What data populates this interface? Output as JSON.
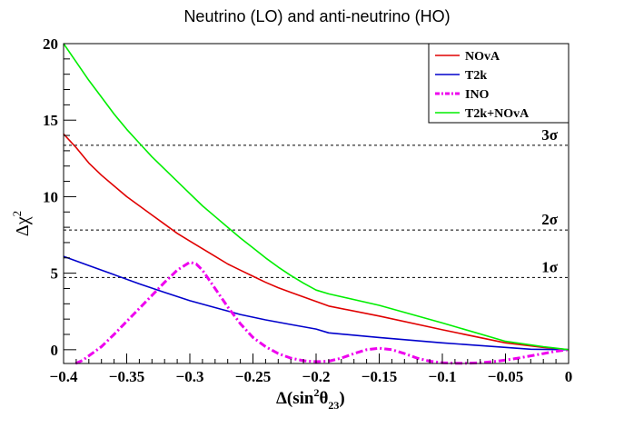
{
  "chart_data": {
    "type": "line",
    "title": "Neutrino (LO) and anti-neutrino (HO)",
    "xlabel": {
      "prefix": "Δ(sin",
      "sup": "2",
      "theta": "θ",
      "sub": "23",
      "suffix": ")"
    },
    "ylabel": {
      "base": "Δχ",
      "sup": "2"
    },
    "xlim": [
      -0.4,
      0
    ],
    "ylim": [
      -0.9,
      20
    ],
    "x_ticks": [
      -0.4,
      -0.35,
      -0.3,
      -0.25,
      -0.2,
      -0.15,
      -0.1,
      -0.05,
      0
    ],
    "x_tick_labels": [
      "−0.4",
      "−0.35",
      "−0.3",
      "−0.25",
      "−0.2",
      "−0.15",
      "−0.1",
      "−0.05",
      "0"
    ],
    "y_ticks": [
      0,
      5,
      10,
      15,
      20
    ],
    "y_tick_labels": [
      "0",
      "5",
      "10",
      "15",
      "20"
    ],
    "reference_lines": [
      {
        "label": "1σ",
        "y": 4.72
      },
      {
        "label": "2σ",
        "y": 7.82
      },
      {
        "label": "3σ",
        "y": 13.36
      }
    ],
    "legend": {
      "position": "top-right",
      "entries": [
        "NOvA",
        "T2k",
        "INO",
        "T2k+NOvA"
      ]
    },
    "series": [
      {
        "name": "NOvA",
        "color": "#e00000",
        "style": "solid",
        "x": [
          -0.4,
          -0.39,
          -0.38,
          -0.37,
          -0.36,
          -0.35,
          -0.34,
          -0.33,
          -0.32,
          -0.31,
          -0.3,
          -0.29,
          -0.28,
          -0.27,
          -0.26,
          -0.25,
          -0.24,
          -0.23,
          -0.22,
          -0.21,
          -0.2,
          -0.19,
          -0.15,
          -0.1,
          -0.05,
          -0.02,
          0
        ],
        "values": [
          14.1,
          13.2,
          12.2,
          11.4,
          10.7,
          10.0,
          9.4,
          8.8,
          8.2,
          7.6,
          7.1,
          6.6,
          6.1,
          5.6,
          5.2,
          4.8,
          4.4,
          4.05,
          3.75,
          3.45,
          3.15,
          2.85,
          2.2,
          1.3,
          0.45,
          0.15,
          0
        ]
      },
      {
        "name": "T2k",
        "color": "#0000cc",
        "style": "solid",
        "x": [
          -0.4,
          -0.38,
          -0.36,
          -0.34,
          -0.32,
          -0.3,
          -0.28,
          -0.26,
          -0.24,
          -0.22,
          -0.2,
          -0.19,
          -0.15,
          -0.1,
          -0.05,
          -0.03,
          0
        ],
        "values": [
          6.1,
          5.5,
          4.9,
          4.3,
          3.75,
          3.2,
          2.75,
          2.3,
          1.95,
          1.65,
          1.35,
          1.1,
          0.8,
          0.45,
          0.15,
          0.03,
          0
        ]
      },
      {
        "name": "INO",
        "color": "#ee00ee",
        "style": "dashdot",
        "x": [
          -0.3905,
          -0.385,
          -0.37,
          -0.36,
          -0.35,
          -0.34,
          -0.33,
          -0.32,
          -0.31,
          -0.3,
          -0.295,
          -0.29,
          -0.28,
          -0.27,
          -0.26,
          -0.25,
          -0.24,
          -0.23,
          -0.22,
          -0.21,
          -0.2,
          -0.19,
          -0.18,
          -0.17,
          -0.16,
          -0.15,
          -0.14,
          -0.13,
          -0.12,
          -0.11,
          -0.1,
          -0.09,
          -0.08,
          -0.07,
          -0.06,
          -0.05,
          -0.04,
          -0.03,
          -0.02,
          -0.01,
          0
        ],
        "values": [
          -0.9,
          -0.7,
          0.2,
          1.0,
          1.85,
          2.7,
          3.55,
          4.4,
          5.2,
          5.72,
          5.6,
          5.2,
          4.0,
          2.8,
          1.7,
          0.8,
          0.2,
          -0.25,
          -0.55,
          -0.72,
          -0.78,
          -0.75,
          -0.55,
          -0.25,
          0.0,
          0.1,
          0.0,
          -0.25,
          -0.55,
          -0.75,
          -0.85,
          -0.88,
          -0.88,
          -0.85,
          -0.78,
          -0.68,
          -0.55,
          -0.4,
          -0.25,
          -0.1,
          0.0
        ]
      },
      {
        "name": "T2k+NOvA",
        "color": "#00ee00",
        "style": "solid",
        "x": [
          -0.4,
          -0.39,
          -0.38,
          -0.37,
          -0.36,
          -0.35,
          -0.34,
          -0.33,
          -0.32,
          -0.31,
          -0.3,
          -0.29,
          -0.28,
          -0.27,
          -0.26,
          -0.25,
          -0.24,
          -0.23,
          -0.22,
          -0.21,
          -0.2,
          -0.19,
          -0.15,
          -0.1,
          -0.05,
          -0.02,
          0
        ],
        "values": [
          20.0,
          18.8,
          17.6,
          16.5,
          15.4,
          14.4,
          13.5,
          12.6,
          11.8,
          11.0,
          10.2,
          9.4,
          8.7,
          8.0,
          7.3,
          6.65,
          6.0,
          5.4,
          4.85,
          4.35,
          3.9,
          3.65,
          2.9,
          1.75,
          0.55,
          0.2,
          0
        ]
      }
    ]
  }
}
